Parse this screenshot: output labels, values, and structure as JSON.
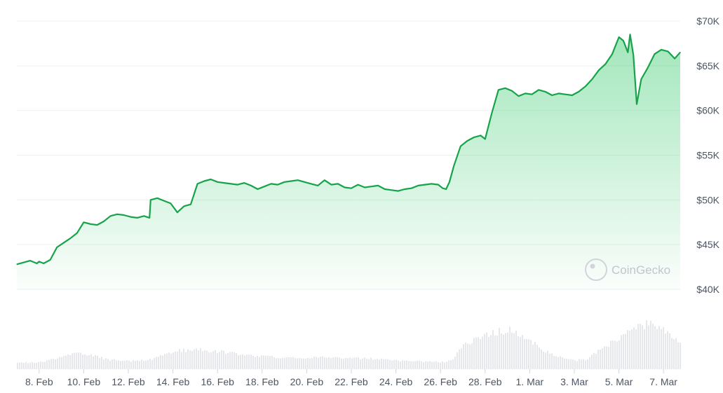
{
  "chart_data": {
    "type": "area",
    "title": "",
    "xlabel": "",
    "ylabel": "",
    "y_unit": "USD",
    "ylim": [
      40000,
      70000
    ],
    "y_ticks": [
      "$40K",
      "$45K",
      "$50K",
      "$55K",
      "$60K",
      "$65K",
      "$70K"
    ],
    "y_tick_values": [
      40000,
      45000,
      50000,
      55000,
      60000,
      65000,
      70000
    ],
    "x_ticks": [
      "8. Feb",
      "10. Feb",
      "12. Feb",
      "14. Feb",
      "16. Feb",
      "18. Feb",
      "20. Feb",
      "22. Feb",
      "24. Feb",
      "26. Feb",
      "28. Feb",
      "1. Mar",
      "3. Mar",
      "5. Mar",
      "7. Mar"
    ],
    "x_tick_days": [
      1,
      3,
      5,
      7,
      9,
      11,
      13,
      15,
      17,
      19,
      21,
      23,
      25,
      27,
      29
    ],
    "grid": true,
    "legend": "none",
    "line_color": "#16a34a",
    "fill_color": "#22c55e",
    "volume_color": "#e5e7eb",
    "series": [
      {
        "x": [
          0.0,
          0.3,
          0.6,
          0.9,
          1.0,
          1.2,
          1.5,
          1.8,
          2.1,
          2.4,
          2.7,
          3.0,
          3.3,
          3.6,
          3.9,
          4.2,
          4.5,
          4.8,
          5.1,
          5.4,
          5.7,
          5.95,
          6.0,
          6.3,
          6.6,
          6.9,
          7.2,
          7.5,
          7.8,
          8.1,
          8.4,
          8.7,
          9.0,
          9.3,
          9.6,
          9.9,
          10.2,
          10.5,
          10.8,
          11.1,
          11.4,
          11.7,
          12.0,
          12.3,
          12.6,
          12.9,
          13.2,
          13.5,
          13.8,
          14.1,
          14.4,
          14.7,
          15.0,
          15.3,
          15.6,
          15.9,
          16.2,
          16.5,
          16.8,
          17.1,
          17.4,
          17.7,
          18.0,
          18.3,
          18.6,
          18.9,
          19.1,
          19.25,
          19.4,
          19.6,
          19.9,
          20.2,
          20.5,
          20.8,
          21.0,
          21.3,
          21.6,
          21.9,
          22.2,
          22.5,
          22.8,
          23.1,
          23.4,
          23.7,
          24.0,
          24.3,
          24.6,
          24.9,
          25.2,
          25.5,
          25.8,
          26.1,
          26.4,
          26.7,
          27.0,
          27.2,
          27.4,
          27.5,
          27.65,
          27.8,
          28.0,
          28.3,
          28.6,
          28.9,
          29.2,
          29.5,
          29.75
        ],
        "values": [
          42800,
          43000,
          43200,
          42900,
          43100,
          42900,
          43300,
          44700,
          45200,
          45700,
          46300,
          47500,
          47300,
          47200,
          47600,
          48200,
          48400,
          48300,
          48100,
          48000,
          48200,
          48000,
          50000,
          50200,
          49900,
          49600,
          48600,
          49300,
          49500,
          51800,
          52100,
          52300,
          52000,
          51900,
          51800,
          51700,
          51900,
          51600,
          51200,
          51500,
          51800,
          51700,
          52000,
          52100,
          52200,
          52000,
          51800,
          51600,
          52200,
          51700,
          51800,
          51400,
          51300,
          51700,
          51400,
          51500,
          51600,
          51200,
          51100,
          51000,
          51200,
          51300,
          51600,
          51700,
          51800,
          51700,
          51300,
          51200,
          52000,
          53800,
          56000,
          56600,
          57000,
          57200,
          56800,
          59700,
          62300,
          62500,
          62200,
          61600,
          61900,
          61800,
          62300,
          62100,
          61700,
          61900,
          61800,
          61700,
          62100,
          62700,
          63500,
          64500,
          65200,
          66300,
          68200,
          67800,
          66500,
          68500,
          66200,
          60700,
          63500,
          64800,
          66300,
          66800,
          66600,
          65800,
          66500
        ]
      }
    ],
    "volume": {
      "x": [
        0,
        1,
        2,
        2.8,
        3.5,
        4,
        5,
        6,
        7,
        8,
        9,
        10,
        11,
        12,
        13,
        14,
        15,
        16,
        17,
        18,
        19,
        19.5,
        20,
        21,
        22,
        22.5,
        23,
        24,
        25,
        25.5,
        26,
        27,
        28,
        28.5,
        29,
        29.75
      ],
      "values": [
        0.15,
        0.18,
        0.3,
        0.42,
        0.33,
        0.25,
        0.2,
        0.25,
        0.45,
        0.5,
        0.45,
        0.38,
        0.32,
        0.28,
        0.3,
        0.3,
        0.28,
        0.26,
        0.22,
        0.2,
        0.18,
        0.22,
        0.6,
        0.9,
        1.0,
        0.85,
        0.7,
        0.35,
        0.22,
        0.25,
        0.45,
        0.8,
        1.1,
        1.15,
        1.0,
        0.65
      ]
    }
  },
  "watermark": {
    "text": "CoinGecko"
  }
}
